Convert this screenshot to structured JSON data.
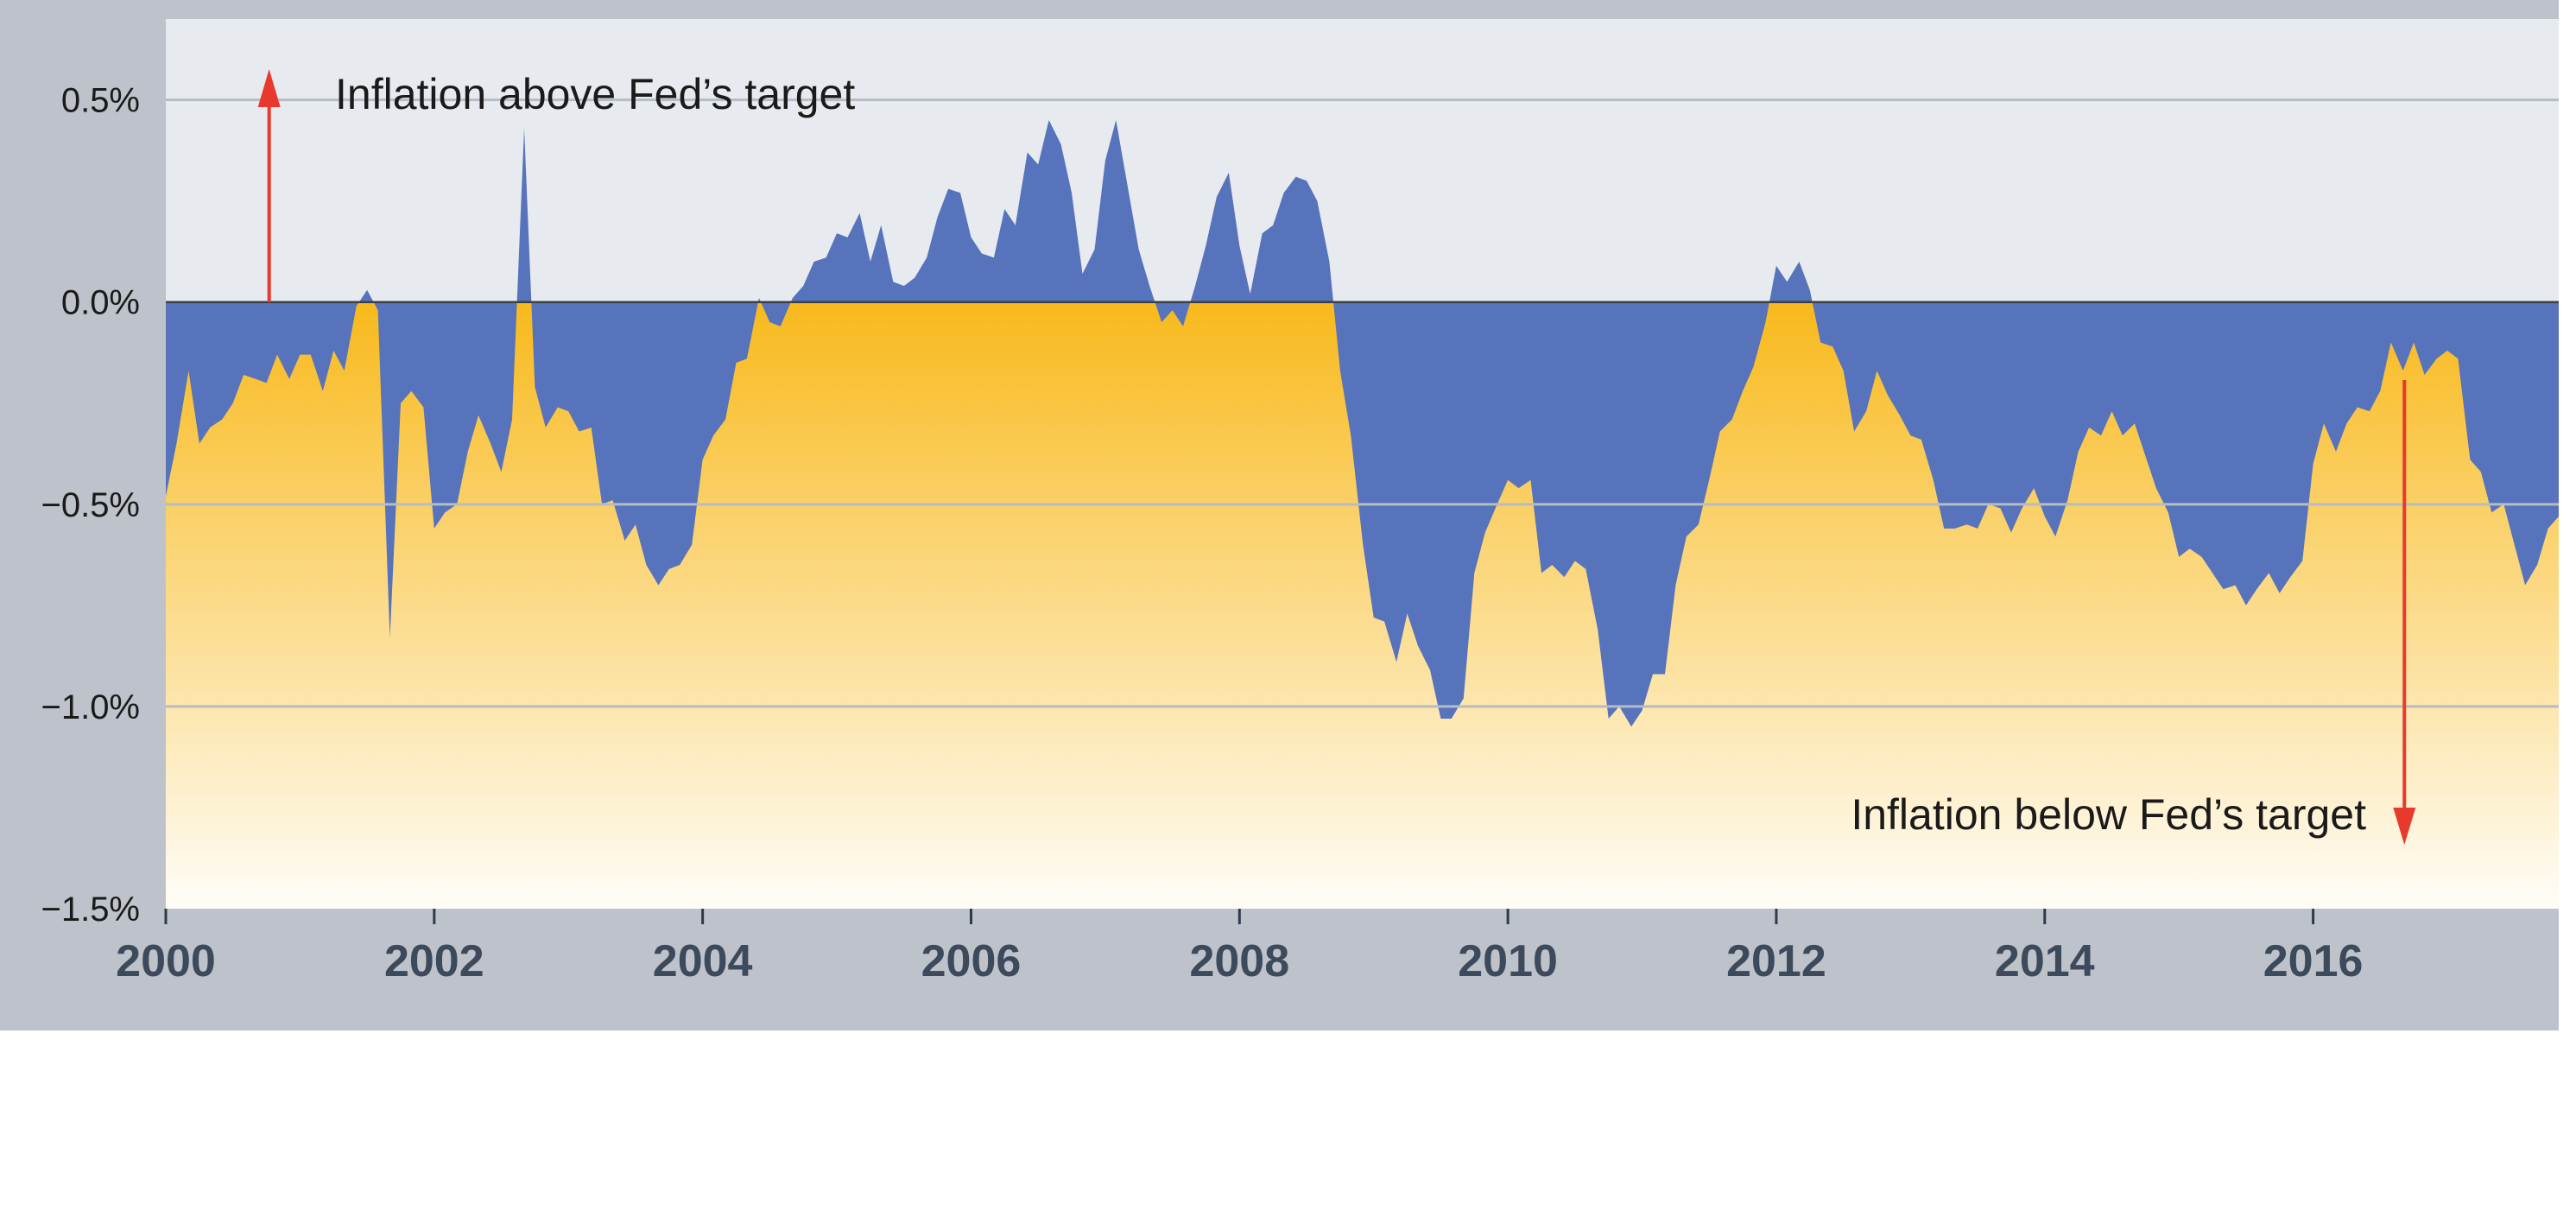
{
  "chart_data": {
    "type": "area",
    "title": "",
    "xlabel": "",
    "ylabel": "",
    "xlim": [
      2000,
      2017.83
    ],
    "ylim": [
      -1.5,
      0.7
    ],
    "y_ticks": [
      {
        "value": 0.5,
        "label": "0.5%"
      },
      {
        "value": 0.0,
        "label": "0.0%"
      },
      {
        "value": -0.5,
        "label": "−0.5%"
      },
      {
        "value": -1.0,
        "label": "−1.0%"
      },
      {
        "value": -1.5,
        "label": "−1.5%"
      }
    ],
    "x_ticks": [
      {
        "value": 2000,
        "label": "2000"
      },
      {
        "value": 2002,
        "label": "2002"
      },
      {
        "value": 2004,
        "label": "2004"
      },
      {
        "value": 2006,
        "label": "2006"
      },
      {
        "value": 2008,
        "label": "2008"
      },
      {
        "value": 2010,
        "label": "2010"
      },
      {
        "value": 2012,
        "label": "2012"
      },
      {
        "value": 2014,
        "label": "2014"
      },
      {
        "value": 2016,
        "label": "2016"
      }
    ],
    "grid": true,
    "legend": "none",
    "annotations": [
      {
        "text": "Inflation above Fed’s target",
        "arrow_direction": "up",
        "arrow_x": 2000.77
      },
      {
        "text": "Inflation below Fed’s target",
        "arrow_direction": "down",
        "arrow_x": 2016.68
      }
    ],
    "colors": {
      "series": "#5673bb",
      "fill_top": "#f8b91c",
      "fill_bottom": "#fffdf8",
      "plot_background": "#e7eaee",
      "frame": "#bec3cb",
      "gridline": "#b6bcc4",
      "arrow": "#e8392d"
    },
    "series": [
      {
        "x": [
          2000.0,
          2000.08,
          2000.17,
          2000.25,
          2000.33,
          2000.42,
          2000.5,
          2000.58,
          2000.67,
          2000.75,
          2000.83,
          2000.92,
          2001.0,
          2001.08,
          2001.17,
          2001.25,
          2001.33,
          2001.42,
          2001.5,
          2001.58,
          2001.67,
          2001.75,
          2001.83,
          2001.92,
          2002.0,
          2002.08,
          2002.17,
          2002.25,
          2002.33,
          2002.42,
          2002.5,
          2002.58,
          2002.67,
          2002.75,
          2002.83,
          2002.92,
          2003.0,
          2003.08,
          2003.17,
          2003.25,
          2003.33,
          2003.42,
          2003.5,
          2003.58,
          2003.67,
          2003.75,
          2003.83,
          2003.92,
          2004.0,
          2004.08,
          2004.17,
          2004.25,
          2004.33,
          2004.42,
          2004.5,
          2004.58,
          2004.67,
          2004.75,
          2004.83,
          2004.92,
          2005.0,
          2005.08,
          2005.17,
          2005.25,
          2005.33,
          2005.42,
          2005.5,
          2005.58,
          2005.67,
          2005.75,
          2005.83,
          2005.92,
          2006.0,
          2006.08,
          2006.17,
          2006.25,
          2006.33,
          2006.42,
          2006.5,
          2006.58,
          2006.67,
          2006.75,
          2006.83,
          2006.92,
          2007.0,
          2007.08,
          2007.17,
          2007.25,
          2007.33,
          2007.42,
          2007.5,
          2007.58,
          2007.67,
          2007.75,
          2007.83,
          2007.92,
          2008.0,
          2008.08,
          2008.17,
          2008.25,
          2008.33,
          2008.42,
          2008.5,
          2008.58,
          2008.67,
          2008.75,
          2008.83,
          2008.92,
          2009.0,
          2009.08,
          2009.17,
          2009.25,
          2009.33,
          2009.42,
          2009.5,
          2009.58,
          2009.67,
          2009.75,
          2009.83,
          2009.92,
          2010.0,
          2010.08,
          2010.17,
          2010.25,
          2010.33,
          2010.42,
          2010.5,
          2010.58,
          2010.67,
          2010.75,
          2010.83,
          2010.92,
          2011.0,
          2011.08,
          2011.17,
          2011.25,
          2011.33,
          2011.42,
          2011.5,
          2011.58,
          2011.67,
          2011.75,
          2011.83,
          2011.92,
          2012.0,
          2012.08,
          2012.17,
          2012.25,
          2012.33,
          2012.42,
          2012.5,
          2012.58,
          2012.67,
          2012.75,
          2012.83,
          2012.92,
          2013.0,
          2013.08,
          2013.17,
          2013.25,
          2013.33,
          2013.42,
          2013.5,
          2013.58,
          2013.67,
          2013.75,
          2013.83,
          2013.92,
          2014.0,
          2014.08,
          2014.17,
          2014.25,
          2014.33,
          2014.42,
          2014.5,
          2014.58,
          2014.67,
          2014.75,
          2014.83,
          2014.92,
          2015.0,
          2015.08,
          2015.17,
          2015.25,
          2015.33,
          2015.42,
          2015.5,
          2015.58,
          2015.67,
          2015.75,
          2015.83,
          2015.92,
          2016.0,
          2016.08,
          2016.17,
          2016.25,
          2016.33,
          2016.42,
          2016.5,
          2016.58,
          2016.67,
          2016.75,
          2016.83,
          2016.92,
          2017.0,
          2017.08,
          2017.17,
          2017.25,
          2017.33,
          2017.42,
          2017.5,
          2017.58,
          2017.67,
          2017.75,
          2017.83
        ],
        "values": [
          -0.48,
          -0.35,
          -0.17,
          -0.35,
          -0.31,
          -0.29,
          -0.25,
          -0.18,
          -0.19,
          -0.2,
          -0.13,
          -0.19,
          -0.13,
          -0.13,
          -0.22,
          -0.12,
          -0.17,
          -0.01,
          0.03,
          -0.02,
          -0.83,
          -0.25,
          -0.22,
          -0.26,
          -0.56,
          -0.52,
          -0.5,
          -0.37,
          -0.28,
          -0.35,
          -0.42,
          -0.29,
          0.43,
          -0.21,
          -0.31,
          -0.26,
          -0.27,
          -0.32,
          -0.31,
          -0.5,
          -0.49,
          -0.59,
          -0.55,
          -0.65,
          -0.7,
          -0.66,
          -0.65,
          -0.6,
          -0.39,
          -0.33,
          -0.29,
          -0.15,
          -0.14,
          0.01,
          -0.05,
          -0.06,
          0.01,
          0.04,
          0.1,
          0.11,
          0.17,
          0.16,
          0.22,
          0.1,
          0.19,
          0.05,
          0.04,
          0.06,
          0.11,
          0.21,
          0.28,
          0.27,
          0.16,
          0.12,
          0.11,
          0.23,
          0.19,
          0.37,
          0.34,
          0.45,
          0.39,
          0.27,
          0.07,
          0.13,
          0.35,
          0.45,
          0.28,
          0.13,
          0.04,
          -0.05,
          -0.02,
          -0.06,
          0.04,
          0.14,
          0.26,
          0.32,
          0.14,
          0.02,
          0.17,
          0.19,
          0.27,
          0.31,
          0.3,
          0.25,
          0.1,
          -0.17,
          -0.33,
          -0.6,
          -0.78,
          -0.79,
          -0.89,
          -0.77,
          -0.85,
          -0.91,
          -1.03,
          -1.03,
          -0.98,
          -0.67,
          -0.57,
          -0.5,
          -0.44,
          -0.46,
          -0.44,
          -0.67,
          -0.65,
          -0.68,
          -0.64,
          -0.66,
          -0.81,
          -1.03,
          -1.0,
          -1.05,
          -1.01,
          -0.92,
          -0.92,
          -0.7,
          -0.58,
          -0.55,
          -0.44,
          -0.32,
          -0.29,
          -0.22,
          -0.16,
          -0.05,
          0.09,
          0.05,
          0.1,
          0.03,
          -0.1,
          -0.11,
          -0.17,
          -0.32,
          -0.27,
          -0.17,
          -0.23,
          -0.28,
          -0.33,
          -0.34,
          -0.44,
          -0.56,
          -0.56,
          -0.55,
          -0.56,
          -0.5,
          -0.51,
          -0.57,
          -0.51,
          -0.46,
          -0.53,
          -0.58,
          -0.49,
          -0.37,
          -0.31,
          -0.33,
          -0.27,
          -0.33,
          -0.3,
          -0.38,
          -0.46,
          -0.52,
          -0.63,
          -0.61,
          -0.63,
          -0.67,
          -0.71,
          -0.7,
          -0.75,
          -0.71,
          -0.67,
          -0.72,
          -0.68,
          -0.64,
          -0.4,
          -0.3,
          -0.37,
          -0.3,
          -0.26,
          -0.27,
          -0.22,
          -0.1,
          -0.17,
          -0.1,
          -0.18,
          -0.14,
          -0.12,
          -0.14,
          -0.39,
          -0.42,
          -0.52,
          -0.5,
          -0.6,
          -0.7,
          -0.65,
          -0.56,
          -0.53
        ]
      }
    ]
  }
}
